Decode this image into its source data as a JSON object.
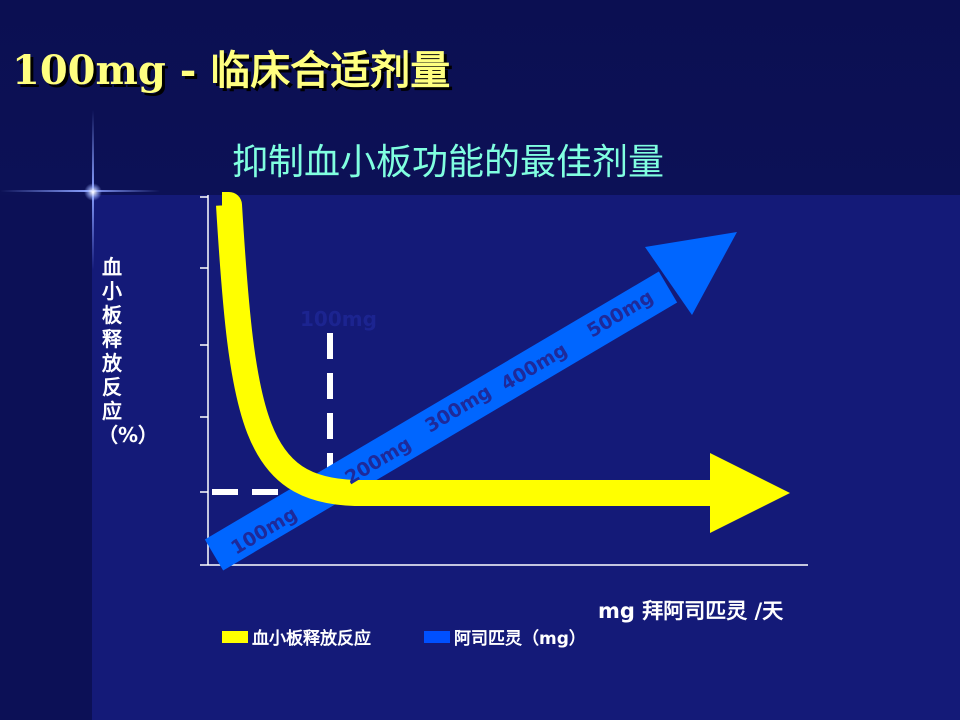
{
  "slide": {
    "title": "100mg - 临床合适剂量",
    "subtitle": "抑制血小板功能的最佳剂量"
  },
  "chart": {
    "y_label": "血小板释放反应（%）",
    "x_label": "mg 拜阿司匹灵 /天",
    "marker_label": "100mg",
    "dose_labels": [
      "100mg",
      "200mg",
      "300mg",
      "400mg",
      "500mg"
    ],
    "legend": [
      {
        "label": "血小板释放反应",
        "color": "#ffff00"
      },
      {
        "label": "阿司匹灵（mg）",
        "color": "#0050ff"
      }
    ],
    "colors": {
      "platelet_curve": "#ffff00",
      "dose_arrow": "#0066ff",
      "axis": "#ffffff",
      "background": "#141a78"
    }
  }
}
